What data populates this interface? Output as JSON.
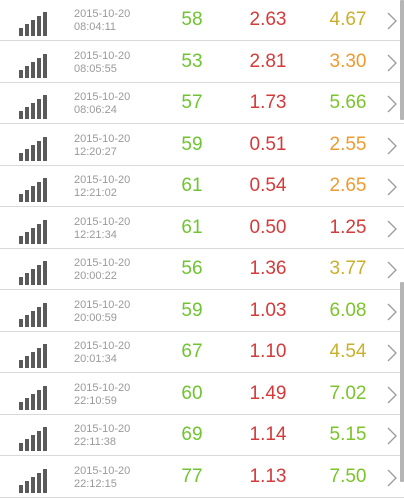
{
  "colors": {
    "green": "#6fc431",
    "red": "#d43a3a",
    "orange": "#ef9a2e",
    "olive_yellow": "#c9b02c",
    "lime": "#7cc42b",
    "timestamp_grey": "#9a9a9a",
    "icon_grey": "#5a5a5a"
  },
  "rows": [
    {
      "icon": "signal-bars-icon",
      "date": "2015-10-20",
      "time": "08:04:11",
      "v1": "58",
      "v2": "2.63",
      "v3": "4.67",
      "v3_color": "#c9b02c"
    },
    {
      "icon": "signal-bars-icon",
      "date": "2015-10-20",
      "time": "08:05:55",
      "v1": "53",
      "v2": "2.81",
      "v3": "3.30",
      "v3_color": "#ef9a2e"
    },
    {
      "icon": "signal-bars-icon",
      "date": "2015-10-20",
      "time": "08:06:24",
      "v1": "57",
      "v2": "1.73",
      "v3": "5.66",
      "v3_color": "#7cc42b"
    },
    {
      "icon": "signal-bars-icon",
      "date": "2015-10-20",
      "time": "12:20:27",
      "v1": "59",
      "v2": "0.51",
      "v3": "2.55",
      "v3_color": "#ef9a2e"
    },
    {
      "icon": "signal-bars-icon",
      "date": "2015-10-20",
      "time": "12:21:02",
      "v1": "61",
      "v2": "0.54",
      "v3": "2.65",
      "v3_color": "#ef9a2e"
    },
    {
      "icon": "signal-bars-icon",
      "date": "2015-10-20",
      "time": "12:21:34",
      "v1": "61",
      "v2": "0.50",
      "v3": "1.25",
      "v3_color": "#d43a3a"
    },
    {
      "icon": "signal-bars-icon",
      "date": "2015-10-20",
      "time": "20:00:22",
      "v1": "56",
      "v2": "1.36",
      "v3": "3.77",
      "v3_color": "#c9b02c"
    },
    {
      "icon": "signal-bars-icon",
      "date": "2015-10-20",
      "time": "20:00:59",
      "v1": "59",
      "v2": "1.03",
      "v3": "6.08",
      "v3_color": "#7cc42b"
    },
    {
      "icon": "signal-bars-icon",
      "date": "2015-10-20",
      "time": "20:01:34",
      "v1": "67",
      "v2": "1.10",
      "v3": "4.54",
      "v3_color": "#c9b02c"
    },
    {
      "icon": "signal-bars-icon",
      "date": "2015-10-20",
      "time": "22:10:59",
      "v1": "60",
      "v2": "1.49",
      "v3": "7.02",
      "v3_color": "#7cc42b"
    },
    {
      "icon": "signal-bars-icon",
      "date": "2015-10-20",
      "time": "22:11:38",
      "v1": "69",
      "v2": "1.14",
      "v3": "5.15",
      "v3_color": "#7cc42b"
    },
    {
      "icon": "signal-bars-icon",
      "date": "2015-10-20",
      "time": "22:12:15",
      "v1": "77",
      "v2": "1.13",
      "v3": "7.50",
      "v3_color": "#7cc42b"
    }
  ],
  "chevron_icon": "chevron-right-icon"
}
